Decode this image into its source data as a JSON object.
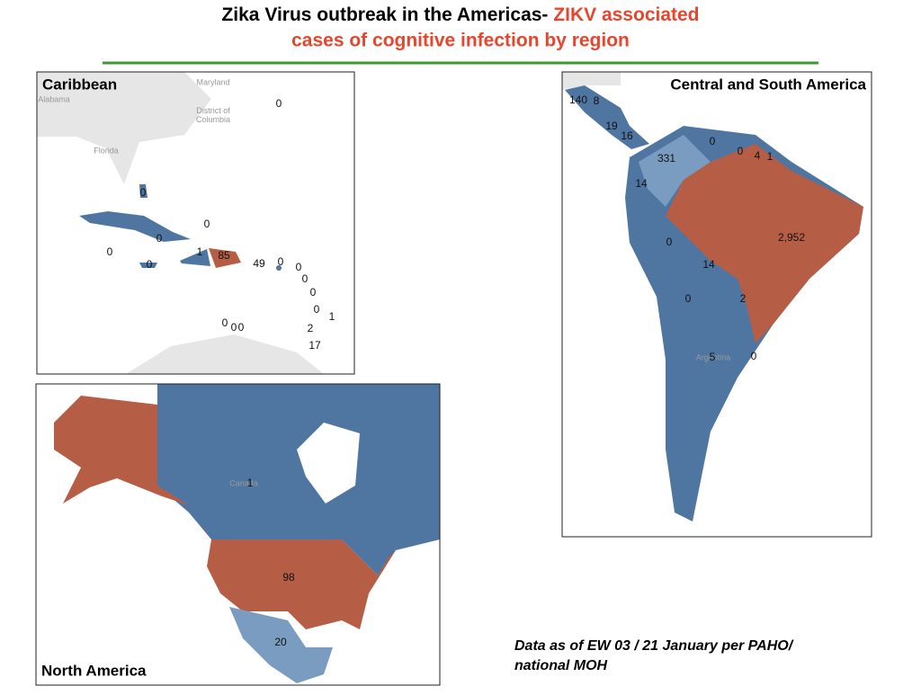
{
  "title": {
    "black": "Zika Virus outbreak in the Americas-",
    "red": "ZIKV associated",
    "line2": "cases of cognitive infection by region"
  },
  "panels": {
    "caribbean": {
      "label": "Caribbean",
      "basemap_labels": [
        "Maryland",
        "District of Columbia",
        "Florida",
        "Alabama"
      ],
      "counts": [
        0,
        0,
        0,
        0,
        0,
        1,
        85,
        0,
        49,
        0,
        0,
        0,
        0,
        0,
        1,
        0,
        0,
        0,
        2,
        17
      ]
    },
    "central_south": {
      "label": "Central and South America",
      "basemap_labels": [
        "Argentina"
      ],
      "counts": [
        140,
        8,
        19,
        16,
        0,
        331,
        0,
        4,
        1,
        14,
        "2,952",
        0,
        14,
        0,
        2,
        5,
        0
      ]
    },
    "north_america": {
      "label": "North America",
      "basemap_labels": [
        "Canada"
      ],
      "counts": [
        98,
        20,
        1
      ]
    }
  },
  "footnote": "Data as of EW 03 / 21 January per PAHO/ national MOH"
}
